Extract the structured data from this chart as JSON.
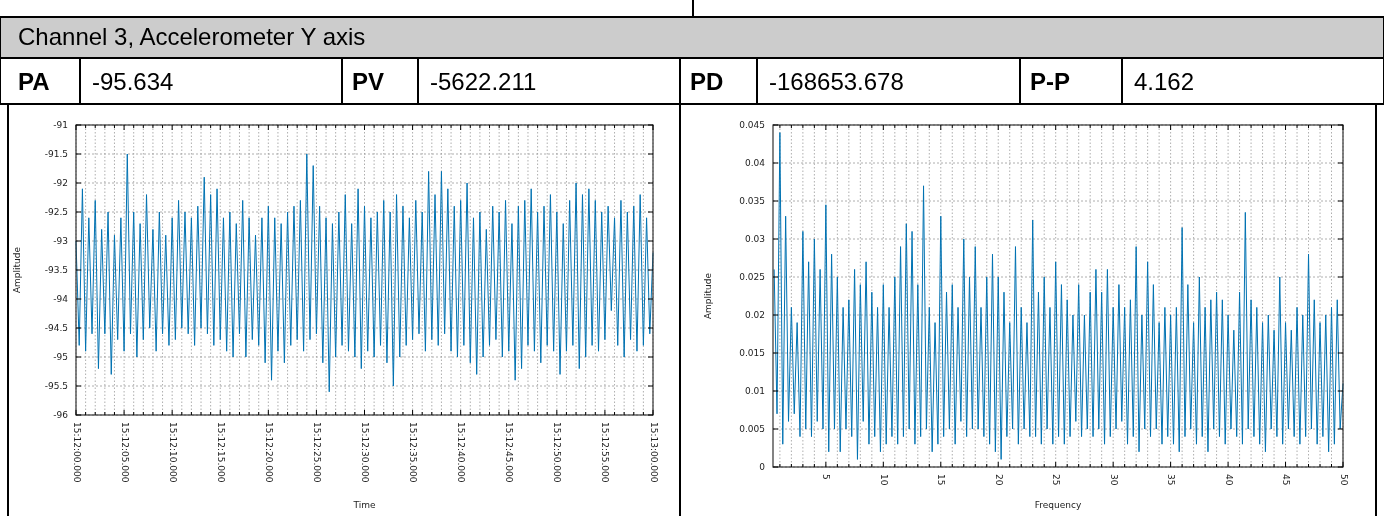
{
  "chart_data": [
    {
      "type": "other",
      "title": "Channel 3, Accelerometer Y axis",
      "annotations": [
        "PA",
        "-95.634",
        "PV",
        "-5622.211",
        "PD",
        "-168653.678",
        "P-P",
        "4.162"
      ]
    },
    {
      "type": "line",
      "xlabel": "Time",
      "ylabel": "Amplitude",
      "grid": true,
      "ylim": [
        -96,
        -91
      ],
      "categories": [
        "15:12:00.000",
        null,
        null,
        null,
        null,
        null,
        null,
        null,
        null,
        null,
        null,
        null,
        null,
        null,
        null,
        "15:12:05.000",
        null,
        null,
        null,
        null,
        null,
        null,
        null,
        null,
        null,
        null,
        null,
        null,
        null,
        null,
        "15:12:10.000",
        null,
        null,
        null,
        null,
        null,
        null,
        null,
        null,
        null,
        null,
        null,
        null,
        null,
        null,
        "15:12:15.000",
        null,
        null,
        null,
        null,
        null,
        null,
        null,
        null,
        null,
        null,
        null,
        null,
        null,
        null,
        "15:12:20.000",
        null,
        null,
        null,
        null,
        null,
        null,
        null,
        null,
        null,
        null,
        null,
        null,
        null,
        null,
        "15:12:25.000",
        null,
        null,
        null,
        null,
        null,
        null,
        null,
        null,
        null,
        null,
        null,
        null,
        null,
        null,
        "15:12:30.000",
        null,
        null,
        null,
        null,
        null,
        null,
        null,
        null,
        null,
        null,
        null,
        null,
        null,
        null,
        "15:12:35.000",
        null,
        null,
        null,
        null,
        null,
        null,
        null,
        null,
        null,
        null,
        null,
        null,
        null,
        null,
        "15:12:40.000",
        null,
        null,
        null,
        null,
        null,
        null,
        null,
        null,
        null,
        null,
        null,
        null,
        null,
        null,
        "15:12:45.000",
        null,
        null,
        null,
        null,
        null,
        null,
        null,
        null,
        null,
        null,
        null,
        null,
        null,
        null,
        "15:12:50.000",
        null,
        null,
        null,
        null,
        null,
        null,
        null,
        null,
        null,
        null,
        null,
        null,
        null,
        null,
        "15:12:55.000",
        null,
        null,
        null,
        null,
        null,
        null,
        null,
        null,
        null,
        null,
        null,
        null,
        null,
        null,
        "15:13:00.000"
      ],
      "yticks": [
        -96,
        -95.5,
        -95,
        -94.5,
        -94,
        -93.5,
        -93,
        -92.5,
        -92,
        -91.5,
        -91
      ],
      "series": [
        {
          "color": "#0072b2",
          "values": [
            -93.0,
            -94.8,
            -92.1,
            -94.9,
            -92.6,
            -94.6,
            -92.3,
            -95.2,
            -92.8,
            -94.6,
            -92.5,
            -95.3,
            -92.9,
            -94.7,
            -92.6,
            -94.9,
            -91.5,
            -94.6,
            -92.5,
            -95.0,
            -92.7,
            -94.7,
            -92.2,
            -94.5,
            -92.8,
            -94.9,
            -92.5,
            -94.6,
            -92.9,
            -94.8,
            -92.6,
            -94.7,
            -92.3,
            -94.5,
            -92.5,
            -94.6,
            -92.6,
            -94.8,
            -92.4,
            -94.5,
            -91.9,
            -94.6,
            -92.2,
            -94.8,
            -92.1,
            -94.7,
            -92.6,
            -94.9,
            -92.5,
            -95.0,
            -92.7,
            -94.6,
            -92.3,
            -95.0,
            -92.6,
            -94.7,
            -92.9,
            -94.8,
            -92.6,
            -95.1,
            -92.4,
            -95.4,
            -92.6,
            -94.9,
            -92.7,
            -95.1,
            -92.5,
            -94.8,
            -92.4,
            -94.7,
            -92.3,
            -94.9,
            -91.5,
            -94.7,
            -91.7,
            -94.6,
            -92.4,
            -95.1,
            -92.6,
            -95.6,
            -92.7,
            -95.0,
            -92.5,
            -94.8,
            -92.2,
            -94.9,
            -92.7,
            -95.0,
            -92.1,
            -95.2,
            -92.4,
            -94.9,
            -92.6,
            -95.0,
            -92.5,
            -94.8,
            -92.3,
            -95.1,
            -92.5,
            -95.5,
            -92.2,
            -95.0,
            -92.4,
            -94.8,
            -92.6,
            -94.7,
            -92.3,
            -94.6,
            -92.5,
            -94.9,
            -91.8,
            -94.7,
            -92.2,
            -94.8,
            -91.8,
            -94.6,
            -92.1,
            -94.9,
            -92.4,
            -95.0,
            -92.3,
            -94.8,
            -92.0,
            -95.1,
            -92.6,
            -95.3,
            -92.5,
            -95.0,
            -92.8,
            -94.8,
            -92.4,
            -94.7,
            -92.5,
            -95.0,
            -92.3,
            -94.9,
            -92.7,
            -95.4,
            -92.4,
            -95.2,
            -92.3,
            -94.8,
            -92.1,
            -94.9,
            -92.5,
            -95.1,
            -92.4,
            -94.8,
            -92.2,
            -94.9,
            -92.5,
            -95.3,
            -92.7,
            -94.9,
            -92.3,
            -94.8,
            -92.0,
            -95.2,
            -92.2,
            -95.0,
            -92.1,
            -94.8,
            -92.3,
            -94.9,
            -92.5,
            -94.7,
            -92.4,
            -94.2,
            -92.6,
            -94.8,
            -92.3,
            -95.0,
            -92.5,
            -94.7,
            -92.4,
            -94.9,
            -92.2,
            -94.8,
            -92.6,
            -94.6,
            -93.2
          ]
        }
      ]
    },
    {
      "type": "line",
      "xlabel": "Frequency",
      "ylabel": "Amplitude",
      "grid": true,
      "xlim": [
        0.4,
        50
      ],
      "ylim": [
        0,
        0.045
      ],
      "yticks": [
        0,
        0.005,
        0.01,
        0.015,
        0.02,
        0.025,
        0.03,
        0.035,
        0.04,
        0.045
      ],
      "xticks": [
        {
          "value": 1,
          "label": null
        },
        {
          "value": 2,
          "label": null
        },
        {
          "value": 3,
          "label": null
        },
        {
          "value": 4,
          "label": null
        },
        5,
        {
          "value": 6,
          "label": null
        },
        {
          "value": 7,
          "label": null
        },
        {
          "value": 8,
          "label": null
        },
        {
          "value": 9,
          "label": null
        },
        10,
        {
          "value": 11,
          "label": null
        },
        {
          "value": 12,
          "label": null
        },
        {
          "value": 13,
          "label": null
        },
        {
          "value": 14,
          "label": null
        },
        15,
        {
          "value": 16,
          "label": null
        },
        {
          "value": 17,
          "label": null
        },
        {
          "value": 18,
          "label": null
        },
        {
          "value": 19,
          "label": null
        },
        20,
        {
          "value": 21,
          "label": null
        },
        {
          "value": 22,
          "label": null
        },
        {
          "value": 23,
          "label": null
        },
        {
          "value": 24,
          "label": null
        },
        25,
        {
          "value": 26,
          "label": null
        },
        {
          "value": 27,
          "label": null
        },
        {
          "value": 28,
          "label": null
        },
        {
          "value": 29,
          "label": null
        },
        30,
        {
          "value": 31,
          "label": null
        },
        {
          "value": 32,
          "label": null
        },
        {
          "value": 33,
          "label": null
        },
        {
          "value": 34,
          "label": null
        },
        35,
        {
          "value": 36,
          "label": null
        },
        {
          "value": 37,
          "label": null
        },
        {
          "value": 38,
          "label": null
        },
        {
          "value": 39,
          "label": null
        },
        40,
        {
          "value": 41,
          "label": null
        },
        {
          "value": 42,
          "label": null
        },
        {
          "value": 43,
          "label": null
        },
        {
          "value": 44,
          "label": null
        },
        45,
        {
          "value": 46,
          "label": null
        },
        {
          "value": 47,
          "label": null
        },
        {
          "value": 48,
          "label": null
        },
        {
          "value": 49,
          "label": null
        },
        50
      ],
      "x": [
        0.5,
        0.75,
        1,
        1.25,
        1.5,
        1.75,
        2,
        2.25,
        2.5,
        2.75,
        3,
        3.25,
        3.5,
        3.75,
        4,
        4.25,
        4.5,
        4.75,
        5,
        5.25,
        5.5,
        5.75,
        6,
        6.25,
        6.5,
        6.75,
        7,
        7.25,
        7.5,
        7.75,
        8,
        8.25,
        8.5,
        8.75,
        9,
        9.25,
        9.5,
        9.75,
        10,
        10.25,
        10.5,
        10.75,
        11,
        11.25,
        11.5,
        11.75,
        12,
        12.25,
        12.5,
        12.75,
        13,
        13.25,
        13.5,
        13.75,
        14,
        14.25,
        14.5,
        14.75,
        15,
        15.25,
        15.5,
        15.75,
        16,
        16.25,
        16.5,
        16.75,
        17,
        17.25,
        17.5,
        17.75,
        18,
        18.25,
        18.5,
        18.75,
        19,
        19.25,
        19.5,
        19.75,
        20,
        20.25,
        20.5,
        20.75,
        21,
        21.25,
        21.5,
        21.75,
        22,
        22.25,
        22.5,
        22.75,
        23,
        23.25,
        23.5,
        23.75,
        24,
        24.25,
        24.5,
        24.75,
        25,
        25.25,
        25.5,
        25.75,
        26,
        26.25,
        26.5,
        26.75,
        27,
        27.25,
        27.5,
        27.75,
        28,
        28.25,
        28.5,
        28.75,
        29,
        29.25,
        29.5,
        29.75,
        30,
        30.25,
        30.5,
        30.75,
        31,
        31.25,
        31.5,
        31.75,
        32,
        32.25,
        32.5,
        32.75,
        33,
        33.25,
        33.5,
        33.75,
        34,
        34.25,
        34.5,
        34.75,
        35,
        35.25,
        35.5,
        35.75,
        36,
        36.25,
        36.5,
        36.75,
        37,
        37.25,
        37.5,
        37.75,
        38,
        38.25,
        38.5,
        38.75,
        39,
        39.25,
        39.5,
        39.75,
        40,
        40.25,
        40.5,
        40.75,
        41,
        41.25,
        41.5,
        41.75,
        42,
        42.25,
        42.5,
        42.75,
        43,
        43.25,
        43.5,
        43.75,
        44,
        44.25,
        44.5,
        44.75,
        45,
        45.25,
        45.5,
        45.75,
        46,
        46.25,
        46.5,
        46.75,
        47,
        47.25,
        47.5,
        47.75,
        48,
        48.25,
        48.5,
        48.75,
        49,
        49.25,
        49.5,
        49.75,
        50
      ],
      "series": [
        {
          "color": "#0072b2",
          "values": [
            0.026,
            0.007,
            0.044,
            0.003,
            0.033,
            0.006,
            0.021,
            0.007,
            0.019,
            0.004,
            0.031,
            0.005,
            0.027,
            0.004,
            0.03,
            0.006,
            0.026,
            0.005,
            0.0345,
            0.002,
            0.028,
            0.005,
            0.025,
            0.002,
            0.021,
            0.005,
            0.022,
            0.004,
            0.026,
            0.001,
            0.024,
            0.006,
            0.027,
            0.003,
            0.023,
            0.004,
            0.021,
            0.002,
            0.024,
            0.003,
            0.021,
            0.004,
            0.025,
            0.003,
            0.029,
            0.004,
            0.032,
            0.005,
            0.031,
            0.003,
            0.024,
            0.004,
            0.037,
            0.005,
            0.021,
            0.002,
            0.019,
            0.003,
            0.033,
            0.004,
            0.023,
            0.005,
            0.024,
            0.003,
            0.021,
            0.006,
            0.03,
            0.004,
            0.025,
            0.005,
            0.029,
            0.005,
            0.021,
            0.004,
            0.025,
            0.003,
            0.028,
            0.002,
            0.025,
            0.001,
            0.023,
            0.004,
            0.019,
            0.005,
            0.029,
            0.003,
            0.021,
            0.005,
            0.019,
            0.004,
            0.0325,
            0.004,
            0.023,
            0.003,
            0.025,
            0.005,
            0.021,
            0.003,
            0.027,
            0.004,
            0.024,
            0.003,
            0.022,
            0.004,
            0.02,
            0.006,
            0.024,
            0.004,
            0.02,
            0.005,
            0.023,
            0.004,
            0.026,
            0.005,
            0.023,
            0.003,
            0.026,
            0.004,
            0.021,
            0.005,
            0.024,
            0.006,
            0.021,
            0.003,
            0.022,
            0.004,
            0.029,
            0.002,
            0.02,
            0.005,
            0.027,
            0.004,
            0.024,
            0.005,
            0.019,
            0.003,
            0.021,
            0.004,
            0.02,
            0.003,
            0.021,
            0.002,
            0.0315,
            0.004,
            0.024,
            0.005,
            0.019,
            0.003,
            0.025,
            0.004,
            0.021,
            0.002,
            0.022,
            0.005,
            0.023,
            0.004,
            0.022,
            0.003,
            0.02,
            0.005,
            0.018,
            0.004,
            0.023,
            0.003,
            0.0335,
            0.005,
            0.022,
            0.004,
            0.021,
            0.003,
            0.019,
            0.002,
            0.02,
            0.005,
            0.018,
            0.004,
            0.025,
            0.003,
            0.019,
            0.005,
            0.018,
            0.004,
            0.021,
            0.003,
            0.02,
            0.004,
            0.028,
            0.005,
            0.022,
            0.003,
            0.019,
            0.004,
            0.02,
            0.002,
            0.021,
            0.003,
            0.022,
            0.005,
            0.011
          ]
        }
      ]
    }
  ]
}
